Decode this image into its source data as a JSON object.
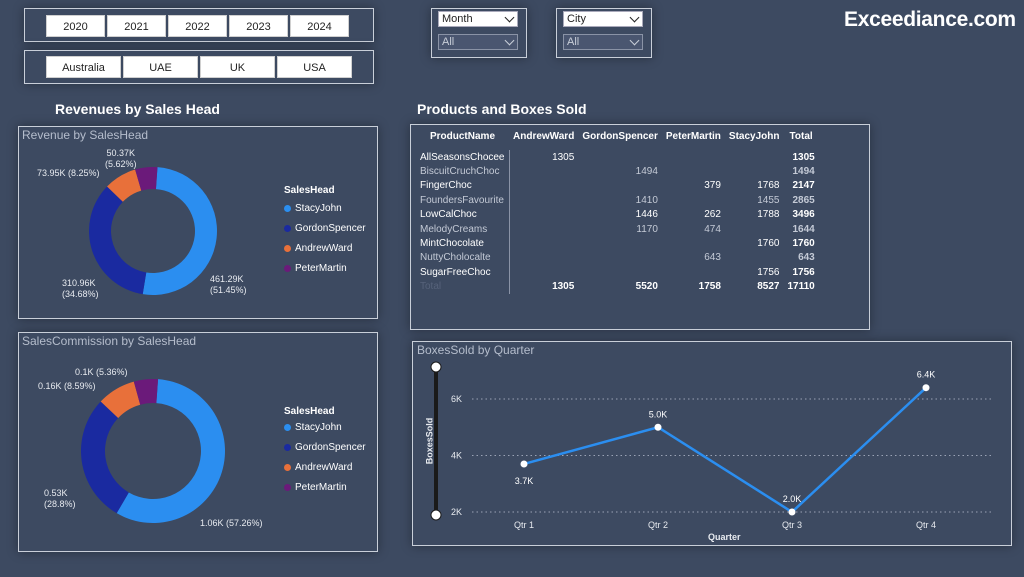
{
  "brand": "Exceediance.com",
  "year_slicer": [
    "2020",
    "2021",
    "2022",
    "2023",
    "2024"
  ],
  "country_slicer": [
    "Australia",
    "UAE",
    "UK",
    "USA"
  ],
  "month_filter": {
    "label": "Month",
    "value": "All"
  },
  "city_filter": {
    "label": "City",
    "value": "All"
  },
  "revenue_section_title": "Revenues by Sales Head",
  "products_section_title": "Products and Boxes Sold",
  "colors": {
    "StacyJohn": "#2b8ef0",
    "GordonSpencer": "#1a2aa0",
    "AndrewWard": "#e8703a",
    "PeterMartin": "#6b1a7a",
    "line": "#2b8ef0"
  },
  "chart_data": [
    {
      "type": "pie",
      "title": "Revenue by SalesHead",
      "legend_title": "SalesHead",
      "legend": [
        "StacyJohn",
        "GordonSpencer",
        "AndrewWard",
        "PeterMartin"
      ],
      "labels": [
        "StacyJohn",
        "GordonSpencer",
        "AndrewWard",
        "PeterMartin"
      ],
      "values": [
        461.29,
        310.96,
        73.95,
        50.37
      ],
      "data_labels": [
        "461.29K\n(51.45%)",
        "310.96K\n(34.68%)",
        "73.95K (8.25%)",
        "50.37K\n(5.62%)"
      ]
    },
    {
      "type": "pie",
      "title": "SalesCommission by SalesHead",
      "legend_title": "SalesHead",
      "legend": [
        "StacyJohn",
        "GordonSpencer",
        "AndrewWard",
        "PeterMartin"
      ],
      "labels": [
        "StacyJohn",
        "GordonSpencer",
        "AndrewWard",
        "PeterMartin"
      ],
      "values": [
        1.06,
        0.53,
        0.16,
        0.1
      ],
      "data_labels": [
        "1.06K (57.26%)",
        "0.53K\n(28.8%)",
        "0.16K (8.59%)",
        "0.1K (5.36%)"
      ]
    },
    {
      "type": "table",
      "columns": [
        "ProductName",
        "AndrewWard",
        "GordonSpencer",
        "PeterMartin",
        "StacyJohn",
        "Total"
      ],
      "rows": [
        [
          "AllSeasonsChocee",
          "1305",
          "",
          "",
          "",
          "1305"
        ],
        [
          "BiscuitCruchChoc",
          "",
          "1494",
          "",
          "",
          "1494"
        ],
        [
          "FingerChoc",
          "",
          "",
          "379",
          "1768",
          "2147"
        ],
        [
          "FoundersFavourite",
          "",
          "1410",
          "",
          "1455",
          "2865"
        ],
        [
          "LowCalChoc",
          "",
          "1446",
          "262",
          "1788",
          "3496"
        ],
        [
          "MelodyCreams",
          "",
          "1170",
          "474",
          "",
          "1644"
        ],
        [
          "MintChocolate",
          "",
          "",
          "",
          "1760",
          "1760"
        ],
        [
          "NuttyCholocalte",
          "",
          "",
          "643",
          "",
          "643"
        ],
        [
          "SugarFreeChoc",
          "",
          "",
          "",
          "1756",
          "1756"
        ]
      ],
      "total_row": [
        "Total",
        "1305",
        "5520",
        "1758",
        "8527",
        "17110"
      ]
    },
    {
      "type": "line",
      "title": "BoxesSold by Quarter",
      "xlabel": "Quarter",
      "ylabel": "BoxesSold",
      "categories": [
        "Qtr 1",
        "Qtr 2",
        "Qtr 3",
        "Qtr 4"
      ],
      "values": [
        3700,
        5000,
        2000,
        6400
      ],
      "data_labels": [
        "3.7K",
        "5.0K",
        "2.0K",
        "6.4K"
      ],
      "yticks": [
        "2K",
        "4K",
        "6K"
      ],
      "ytick_values": [
        2000,
        4000,
        6000
      ],
      "grid": true
    }
  ]
}
